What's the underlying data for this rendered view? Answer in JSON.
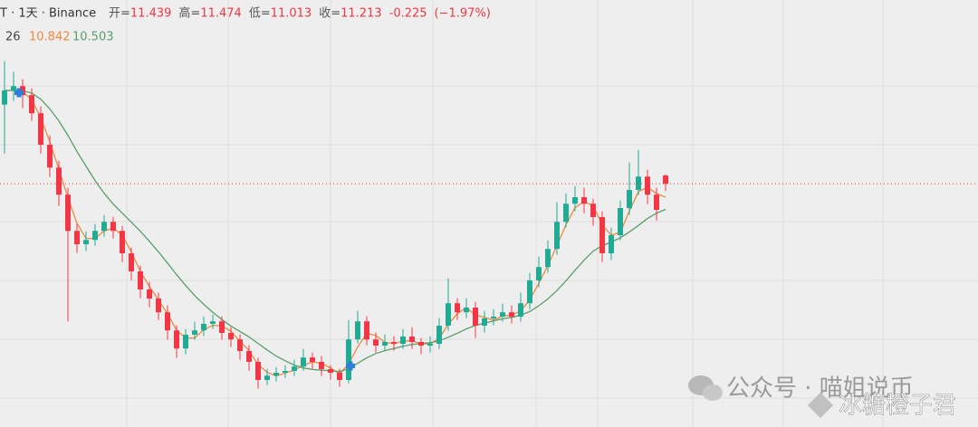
{
  "chart_data": {
    "type": "candlestick",
    "symbol": "T · 1天 · Binance",
    "open_label": "开=",
    "high_label": "高=",
    "low_label": "低=",
    "close_label": "收=",
    "change": -0.225,
    "change_pct": {
      "value": -1.97,
      "label": "(−1.97%)"
    },
    "indicator_label": "26",
    "up_color": "#22ab94",
    "down_color": "#f23645",
    "ylim": [
      4.49,
      16.29
    ],
    "open": [
      13.4,
      13.79,
      13.91,
      13.66,
      13.16,
      12.29,
      11.66,
      10.91,
      9.91,
      9.54,
      9.66,
      9.91,
      10.16,
      9.91,
      9.29,
      8.79,
      8.29,
      8.04,
      7.66,
      7.16,
      6.66,
      7.04,
      7.16,
      7.34,
      7.41,
      7.09,
      6.91,
      6.59,
      6.29,
      5.79,
      5.91,
      5.99,
      6.04,
      6.16,
      6.41,
      6.29,
      6.09,
      5.99,
      5.79,
      6.91,
      7.41,
      6.91,
      6.74,
      6.84,
      6.79,
      6.99,
      6.84,
      6.74,
      6.79,
      7.29,
      7.91,
      7.66,
      7.79,
      7.29,
      7.49,
      7.54,
      7.66,
      7.54,
      7.91,
      8.54,
      8.91,
      9.41,
      10.16,
      10.66,
      10.84,
      10.66,
      10.29,
      9.29,
      9.79,
      10.54,
      11.04,
      11.41,
      10.91,
      11.439
    ],
    "high": [
      14.6,
      14.3,
      14.1,
      13.85,
      13.35,
      12.55,
      11.85,
      11.1,
      10.1,
      9.9,
      10.1,
      10.35,
      10.3,
      10.05,
      9.45,
      8.95,
      8.5,
      8.2,
      7.85,
      7.3,
      7.2,
      7.4,
      7.55,
      7.6,
      7.55,
      7.25,
      7.05,
      6.75,
      6.4,
      6.1,
      6.15,
      6.2,
      6.35,
      6.65,
      6.55,
      6.45,
      6.2,
      6.1,
      7.45,
      7.7,
      7.55,
      7.1,
      7.05,
      7.0,
      7.2,
      7.25,
      6.95,
      7.0,
      7.5,
      8.6,
      8.05,
      8.05,
      7.95,
      7.7,
      7.75,
      7.9,
      7.85,
      8.2,
      8.75,
      9.2,
      9.65,
      10.7,
      10.95,
      11.15,
      11.1,
      10.8,
      10.45,
      10.0,
      10.75,
      11.8,
      12.15,
      11.6,
      11.1,
      11.474
    ],
    "low": [
      12.05,
      13.5,
      13.3,
      12.95,
      12.05,
      11.4,
      10.6,
      7.41,
      9.3,
      9.35,
      9.5,
      9.75,
      9.7,
      9.05,
      8.55,
      8.05,
      7.8,
      7.45,
      6.9,
      6.4,
      6.5,
      6.9,
      7.0,
      7.2,
      6.9,
      6.7,
      6.35,
      6.05,
      5.55,
      5.65,
      5.75,
      5.85,
      5.9,
      6.05,
      6.1,
      5.9,
      5.8,
      5.6,
      5.7,
      6.8,
      6.75,
      6.55,
      6.6,
      6.6,
      6.65,
      6.65,
      6.5,
      6.55,
      6.65,
      7.15,
      7.45,
      7.5,
      6.95,
      7.1,
      7.3,
      7.4,
      7.35,
      7.4,
      7.75,
      8.35,
      8.75,
      9.25,
      10.0,
      10.45,
      10.4,
      10.05,
      9.05,
      9.1,
      9.65,
      10.35,
      10.9,
      10.65,
      10.2,
      11.013
    ],
    "close": [
      13.79,
      13.91,
      13.66,
      13.16,
      12.29,
      11.66,
      10.91,
      9.91,
      9.54,
      9.66,
      9.91,
      10.16,
      9.91,
      9.29,
      8.79,
      8.29,
      8.04,
      7.66,
      7.16,
      6.66,
      7.04,
      7.16,
      7.34,
      7.41,
      7.09,
      6.91,
      6.59,
      6.29,
      5.79,
      5.91,
      5.99,
      6.04,
      6.16,
      6.41,
      6.29,
      6.09,
      5.99,
      5.79,
      6.91,
      7.41,
      6.91,
      6.74,
      6.84,
      6.79,
      6.99,
      6.84,
      6.74,
      6.79,
      7.29,
      7.91,
      7.66,
      7.79,
      7.29,
      7.49,
      7.54,
      7.66,
      7.54,
      7.91,
      8.54,
      8.91,
      9.41,
      10.16,
      10.66,
      10.84,
      10.66,
      10.29,
      9.29,
      9.79,
      10.54,
      11.04,
      11.41,
      10.91,
      10.49,
      11.213
    ],
    "series": [
      {
        "color": "#f0883e",
        "values": [
          13.79,
          13.79,
          13.75,
          13.54,
          13.04,
          12.37,
          11.62,
          10.83,
          10.12,
          9.7,
          9.7,
          9.91,
          9.99,
          9.79,
          9.33,
          8.79,
          8.37,
          8.0,
          7.62,
          7.16,
          6.95,
          6.95,
          7.18,
          7.3,
          7.28,
          7.14,
          6.86,
          6.6,
          6.22,
          6.0,
          5.9,
          5.98,
          6.06,
          6.2,
          6.29,
          6.25,
          6.12,
          5.96,
          6.23,
          6.7,
          7.08,
          7.02,
          6.83,
          6.79,
          6.87,
          6.87,
          6.79,
          6.79,
          6.94,
          7.33,
          7.62,
          7.79,
          7.58,
          7.52,
          7.44,
          7.56,
          7.58,
          7.7,
          8.0,
          8.46,
          8.95,
          9.5,
          10.08,
          10.55,
          10.72,
          10.6,
          10.08,
          9.79,
          9.87,
          10.46,
          10.99,
          11.12,
          10.94,
          10.842
        ]
      },
      {
        "color": "#5a9e6a",
        "values": [
          13.79,
          13.79,
          13.78,
          13.72,
          13.55,
          13.28,
          12.95,
          12.55,
          12.1,
          11.7,
          11.3,
          10.95,
          10.65,
          10.4,
          10.15,
          9.9,
          9.62,
          9.33,
          9.02,
          8.7,
          8.4,
          8.12,
          7.88,
          7.66,
          7.46,
          7.28,
          7.13,
          6.98,
          6.8,
          6.62,
          6.45,
          6.32,
          6.2,
          6.12,
          6.08,
          6.06,
          6.05,
          6.02,
          6.1,
          6.25,
          6.4,
          6.52,
          6.6,
          6.66,
          6.72,
          6.77,
          6.8,
          6.82,
          6.87,
          6.97,
          7.08,
          7.2,
          7.3,
          7.36,
          7.42,
          7.48,
          7.52,
          7.58,
          7.68,
          7.84,
          8.03,
          8.26,
          8.53,
          8.82,
          9.1,
          9.35,
          9.5,
          9.6,
          9.72,
          9.88,
          10.06,
          10.25,
          10.4,
          10.503
        ]
      }
    ],
    "watermark": {
      "account": "公众号 · 喵姐说币",
      "author": "冰糖橙子君"
    }
  }
}
